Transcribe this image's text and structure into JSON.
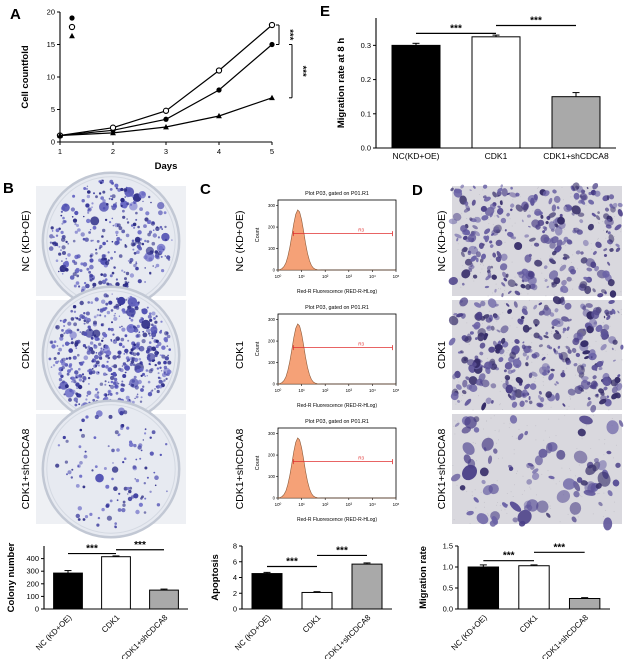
{
  "panels": {
    "a": "A",
    "b": "B",
    "c": "C",
    "d": "D",
    "e": "E"
  },
  "colony_assay": {
    "dot_colors": [
      "#3c3c9e",
      "#5353b4",
      "#2b2b85",
      "#6a6ac6"
    ],
    "rows": [
      {
        "label": "NC (KD+OE)",
        "dots": 340
      },
      {
        "label": "CDK1",
        "dots": 560
      },
      {
        "label": "CDK1+shCDCA8",
        "dots": 115
      }
    ]
  },
  "flow": {
    "title": "Plot P03, gated on P01.R1",
    "xlabel": "Red-R Fluorescence (RED-R-HLog)",
    "ylabel": "Count",
    "gate_label": "R3",
    "xticks": [
      "10⁰",
      "10¹",
      "10²",
      "10³",
      "10⁴",
      "10⁵"
    ],
    "yticks": [
      "0",
      "100",
      "200",
      "300"
    ],
    "peak_color": "#f5a177",
    "gate_color": "#e03030",
    "rows": [
      {
        "label": "NC (KD+OE)"
      },
      {
        "label": "CDK1"
      },
      {
        "label": "CDK1+shCDCA8"
      }
    ]
  },
  "transwell": {
    "cell_colors": [
      "#4a3f87",
      "#5d5399",
      "#352c68",
      "#6b63a6"
    ],
    "rows": [
      {
        "label": "NC (KD+OE)",
        "cells": 290,
        "size_scale": 1
      },
      {
        "label": "CDK1",
        "cells": 320,
        "size_scale": 1
      },
      {
        "label": "CDK1+shCDCA8",
        "cells": 85,
        "size_scale": 1.6
      }
    ]
  },
  "chart_data": [
    {
      "id": "growth_curve",
      "panel": "A",
      "type": "line",
      "x": [
        1,
        2,
        3,
        4,
        5
      ],
      "xlabel": "Days",
      "ylabel": "Cell countfold",
      "ylim": [
        0,
        20
      ],
      "yticks": [
        0,
        5,
        10,
        15,
        20
      ],
      "series": [
        {
          "name": "NC (KD+OE)",
          "marker": "circle-filled",
          "values": [
            1,
            1.8,
            3.5,
            8,
            15
          ]
        },
        {
          "name": "CDK1",
          "marker": "circle-open",
          "values": [
            1,
            2.2,
            4.8,
            11,
            18
          ]
        },
        {
          "name": "CDK1+shCDCA8",
          "marker": "triangle-filled",
          "values": [
            1,
            1.4,
            2.3,
            4,
            6.8
          ]
        }
      ],
      "significance": [
        {
          "between": [
            0,
            1
          ],
          "stars": "***"
        },
        {
          "between": [
            0,
            2
          ],
          "stars": "***"
        }
      ]
    },
    {
      "id": "migration_8h",
      "panel": "E",
      "type": "bar",
      "categories": [
        "NC(KD+OE)",
        "CDK1",
        "CDK1+shCDCA8"
      ],
      "values": [
        0.3,
        0.325,
        0.15
      ],
      "errors": [
        0.006,
        0.005,
        0.012
      ],
      "bar_colors": [
        "#000000",
        "#ffffff",
        "#a9a9a9"
      ],
      "ylabel": "Migration rate at 8 h",
      "ylim": [
        0,
        0.38
      ],
      "yticks": [
        0,
        0.1,
        0.2,
        0.3
      ],
      "ytick_labels": [
        "0.0",
        "0.1",
        "0.2",
        "0.3"
      ],
      "rotate_labels": false,
      "significance": [
        {
          "between": [
            0,
            1
          ],
          "stars": "***",
          "level": 0.335
        },
        {
          "between": [
            1,
            2
          ],
          "stars": "***",
          "level": 0.358
        }
      ]
    },
    {
      "id": "colony_number",
      "panel": "B",
      "type": "bar",
      "categories": [
        "NC (KD+OE)",
        "CDK1",
        "CDK1+shCDCA8"
      ],
      "values": [
        285,
        415,
        150
      ],
      "errors": [
        20,
        6,
        8
      ],
      "bar_colors": [
        "#000000",
        "#ffffff",
        "#a9a9a9"
      ],
      "ylabel": "Colony number",
      "ylim": [
        0,
        500
      ],
      "yticks": [
        0,
        100,
        200,
        300,
        400
      ],
      "rotate_labels": true,
      "significance": [
        {
          "between": [
            0,
            1
          ],
          "stars": "***",
          "level": 440
        },
        {
          "between": [
            1,
            2
          ],
          "stars": "***",
          "level": 470
        }
      ]
    },
    {
      "id": "apoptosis",
      "panel": "C",
      "type": "bar",
      "categories": [
        "NC (KD+OE)",
        "CDK1",
        "CDK1+shCDCA8"
      ],
      "values": [
        4.5,
        2.1,
        5.7
      ],
      "errors": [
        0.15,
        0.1,
        0.15
      ],
      "bar_colors": [
        "#000000",
        "#ffffff",
        "#a9a9a9"
      ],
      "ylabel": "Apoptosis",
      "ylim": [
        0,
        8
      ],
      "yticks": [
        0,
        2,
        4,
        6,
        8
      ],
      "rotate_labels": true,
      "significance": [
        {
          "between": [
            0,
            1
          ],
          "stars": "***",
          "level": 5.4
        },
        {
          "between": [
            1,
            2
          ],
          "stars": "***",
          "level": 6.8
        }
      ]
    },
    {
      "id": "migration_rate",
      "panel": "D",
      "type": "bar",
      "categories": [
        "NC (KD+OE)",
        "CDK1",
        "CDK1+shCDCA8"
      ],
      "values": [
        1.0,
        1.03,
        0.25
      ],
      "errors": [
        0.05,
        0.02,
        0.02
      ],
      "bar_colors": [
        "#000000",
        "#ffffff",
        "#a9a9a9"
      ],
      "ylabel": "Migration rate",
      "ylim": [
        0,
        1.5
      ],
      "yticks": [
        0,
        0.5,
        1,
        1.5
      ],
      "ytick_labels": [
        "0.0",
        "0.5",
        "1.0",
        "1.5"
      ],
      "rotate_labels": true,
      "significance": [
        {
          "between": [
            0,
            1
          ],
          "stars": "***",
          "level": 1.15
        },
        {
          "between": [
            1,
            2
          ],
          "stars": "***",
          "level": 1.35
        }
      ]
    }
  ]
}
